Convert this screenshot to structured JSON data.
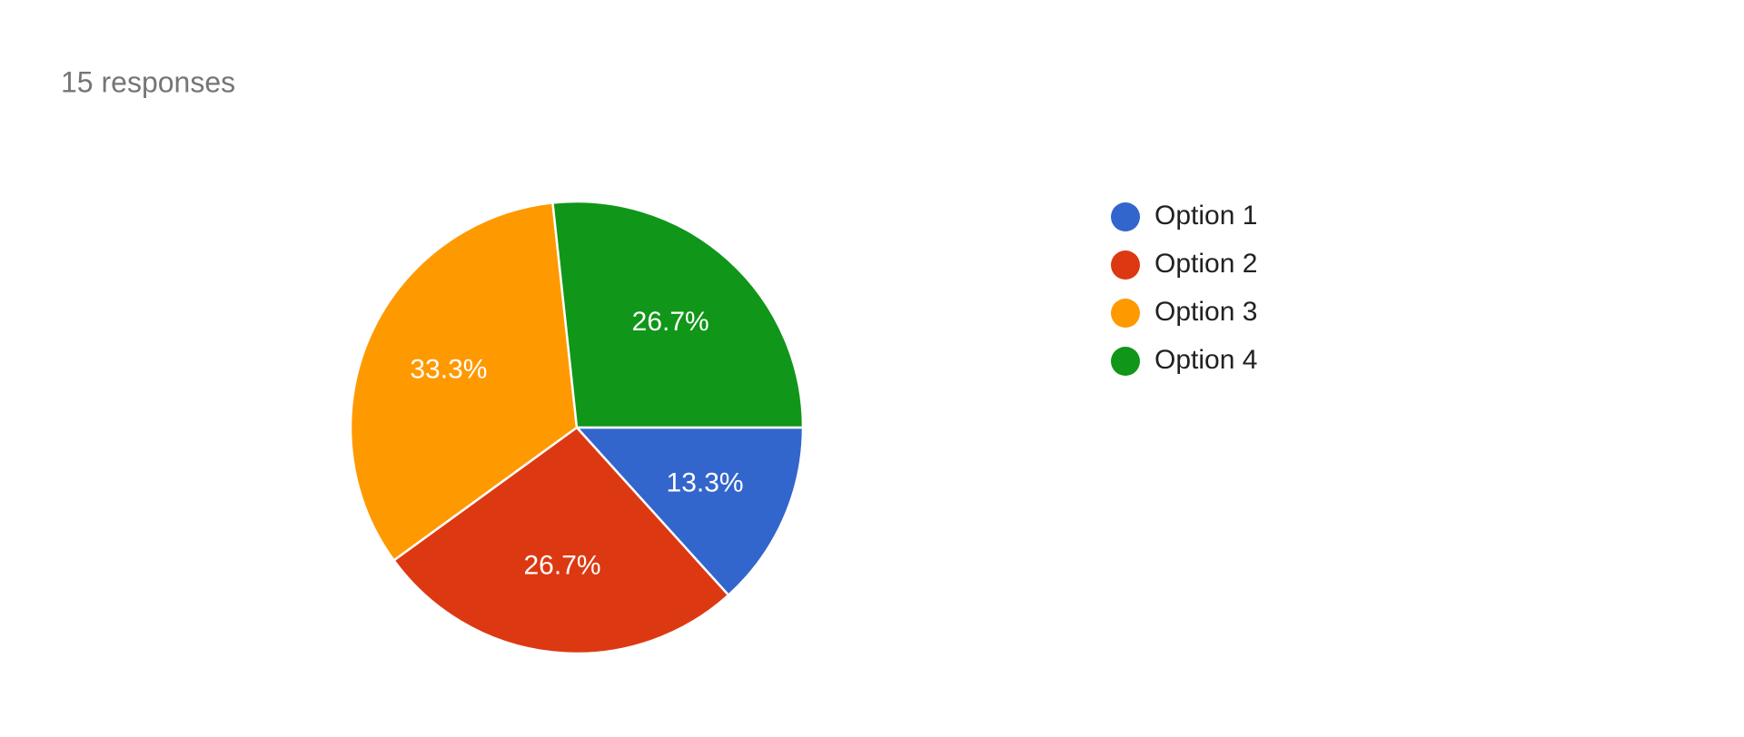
{
  "chart_data": {
    "type": "pie",
    "title": "15 responses",
    "categories": [
      "Option 1",
      "Option 2",
      "Option 3",
      "Option 4"
    ],
    "values": [
      13.3,
      26.7,
      33.3,
      26.7
    ],
    "value_labels": [
      "13.3%",
      "26.7%",
      "33.3%",
      "26.7%"
    ],
    "colors": [
      "#3366cc",
      "#dc3912",
      "#ff9900",
      "#109618"
    ],
    "legend": "right"
  }
}
